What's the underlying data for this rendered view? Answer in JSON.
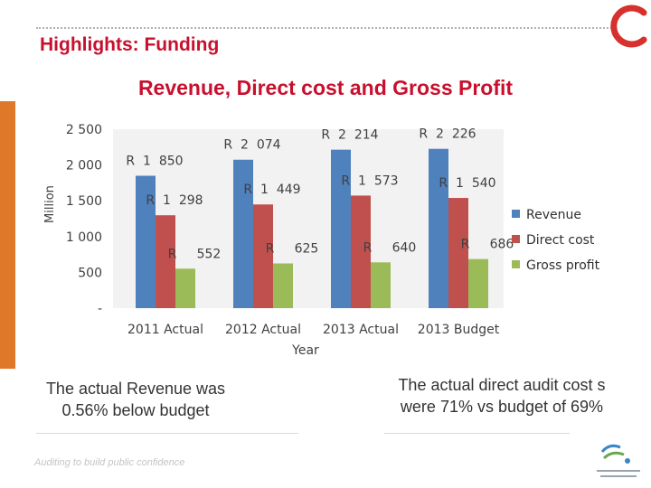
{
  "slide": {
    "title": "Highlights: Funding",
    "note_left": "The actual Revenue was 0.56% below budget",
    "note_right": "The actual direct audit cost s were 71% vs budget  of 69%",
    "tagline": "Auditing to build public confidence",
    "logo_icon": "red-c-logo-icon",
    "brand_mark": "auditor-general-south-africa-logo-icon"
  },
  "chart_data": {
    "type": "bar",
    "title": "Revenue, Direct cost and Gross Profit",
    "xlabel": "Year",
    "ylabel": "Million",
    "ylim": [
      0,
      2500
    ],
    "yticks": [
      0,
      500,
      1000,
      1500,
      2000,
      2500
    ],
    "ytick_labels": [
      "-",
      "500",
      "1 000",
      "1 500",
      "2 000",
      "2 500"
    ],
    "categories": [
      "2011 Actual",
      "2012 Actual",
      "2013 Actual",
      "2013 Budget"
    ],
    "series": [
      {
        "name": "Revenue",
        "color": "#4f81bd",
        "values": [
          1850,
          2074,
          2214,
          2226
        ],
        "labels": [
          "R  1  850",
          "R  2  074",
          "R  2  214",
          "R  2  226"
        ]
      },
      {
        "name": "Direct cost",
        "color": "#c0504d",
        "values": [
          1298,
          1449,
          1573,
          1540
        ],
        "labels": [
          "R  1  298",
          "R  1  449",
          "R  1  573",
          "R  1  540"
        ]
      },
      {
        "name": "Gross profit",
        "color": "#9bbb59",
        "values": [
          552,
          625,
          640,
          686
        ],
        "labels": [
          "R     552",
          "R     625",
          "R     640",
          "R     686"
        ]
      }
    ],
    "legend_position": "right",
    "grid": false
  }
}
